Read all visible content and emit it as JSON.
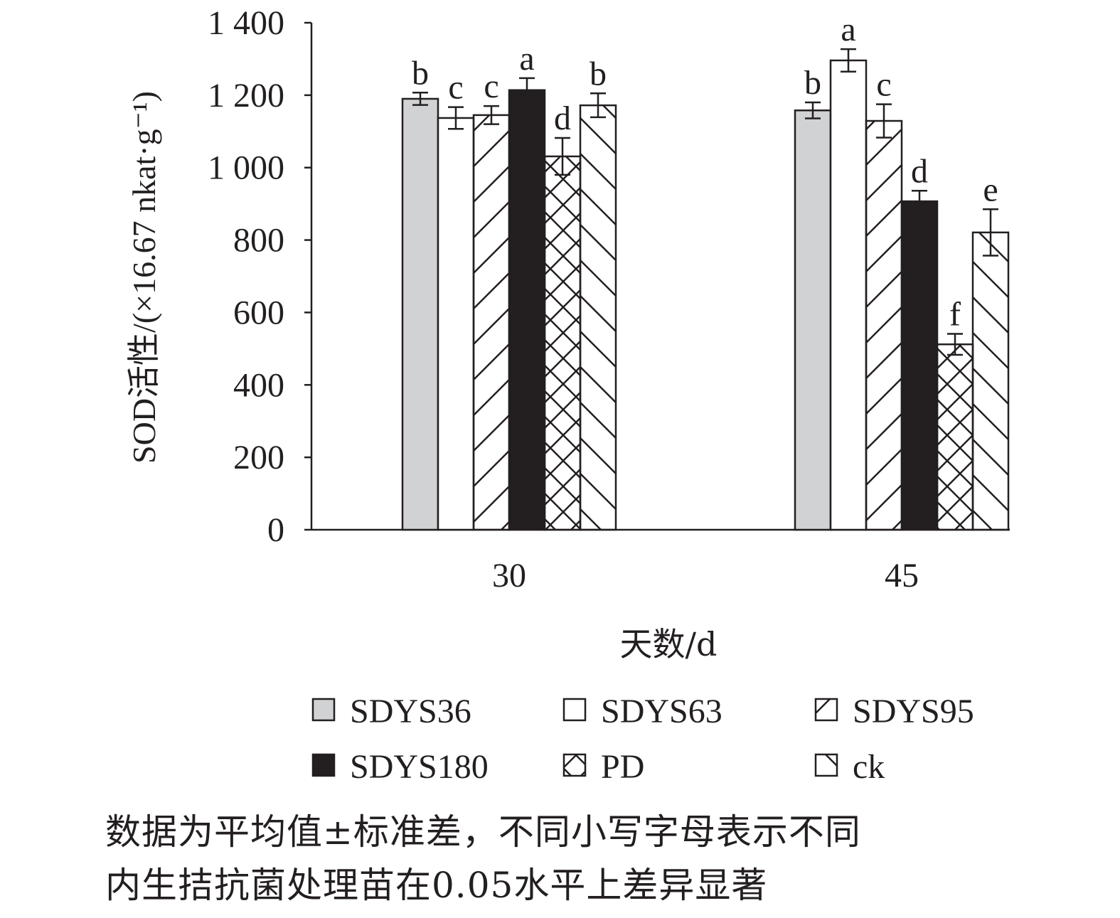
{
  "chart_data": {
    "type": "bar",
    "xlabel": "天数/d",
    "ylabel": "SOD活性/(×16.67 nkat·g⁻¹)",
    "ylim": [
      0,
      1400
    ],
    "yticks": [
      0,
      200,
      400,
      600,
      800,
      1000,
      1200,
      1400
    ],
    "ytick_labels": [
      "0",
      "200",
      "400",
      "600",
      "800",
      "1 000",
      "1 200",
      "1 400"
    ],
    "categories": [
      "30",
      "45"
    ],
    "grid": false,
    "legend_position": "bottom",
    "series": [
      {
        "name": "SDYS36",
        "fill": "#d1d2d4",
        "pattern": "solid",
        "values": [
          1190,
          1158
        ],
        "errors": [
          17,
          22
        ],
        "letters": [
          "b",
          "b"
        ]
      },
      {
        "name": "SDYS63",
        "fill": "#ffffff",
        "pattern": "solid",
        "values": [
          1137,
          1296
        ],
        "errors": [
          30,
          31
        ],
        "letters": [
          "c",
          "a"
        ]
      },
      {
        "name": "SDYS95",
        "fill": "#ffffff",
        "pattern": "forward-diagonal",
        "values": [
          1145,
          1129
        ],
        "errors": [
          25,
          46
        ],
        "letters": [
          "c",
          "c"
        ]
      },
      {
        "name": "SDYS180",
        "fill": "#231f20",
        "pattern": "solid",
        "values": [
          1214,
          907
        ],
        "errors": [
          33,
          29
        ],
        "letters": [
          "a",
          "d"
        ]
      },
      {
        "name": "PD",
        "fill": "#ffffff",
        "pattern": "crosshatch",
        "values": [
          1031,
          512
        ],
        "errors": [
          51,
          29
        ],
        "letters": [
          "d",
          "f"
        ]
      },
      {
        "name": "ck",
        "fill": "#ffffff",
        "pattern": "backward-diagonal",
        "values": [
          1172,
          821
        ],
        "errors": [
          33,
          64
        ],
        "letters": [
          "b",
          "e"
        ]
      }
    ]
  },
  "caption": {
    "line1": "数据为平均值±标准差，不同小写字母表示不同",
    "line2": "内生拮抗菌处理苗在0.05水平上差异显著"
  }
}
